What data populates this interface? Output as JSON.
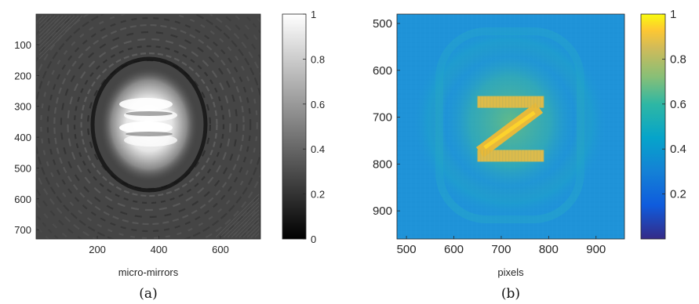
{
  "chart_data": [
    {
      "type": "heatmap",
      "panel_label": "(a)",
      "title": "",
      "xlabel": "micro-mirrors",
      "ylabel": "",
      "xlim": [
        1,
        730
      ],
      "ylim": [
        1,
        730
      ],
      "y_reversed": true,
      "x_ticks": [
        200,
        400,
        600
      ],
      "y_ticks": [
        100,
        200,
        300,
        400,
        500,
        600,
        700
      ],
      "colormap": "gray",
      "colorbar": {
        "limits": [
          0,
          1
        ],
        "ticks": [
          0,
          0.2,
          0.4,
          0.6,
          0.8,
          1
        ],
        "tick_labels": [
          "0",
          "0.2",
          "0.4",
          "0.6",
          "0.8",
          "1"
        ]
      },
      "description_values": {
        "background_level": 0.27,
        "center": [
          370,
          360
        ],
        "peak_level": 1.0
      }
    },
    {
      "type": "heatmap",
      "panel_label": "(b)",
      "title": "",
      "xlabel": "pixels",
      "ylabel": "",
      "xlim": [
        480,
        960
      ],
      "ylim": [
        480,
        960
      ],
      "y_reversed": true,
      "x_ticks": [
        500,
        600,
        700,
        800,
        900
      ],
      "y_ticks": [
        500,
        600,
        700,
        800,
        900
      ],
      "colormap": "parula",
      "colorbar": {
        "limits": [
          0,
          1
        ],
        "ticks": [
          0.2,
          0.4,
          0.6,
          0.8,
          1
        ],
        "tick_labels": [
          "0.2",
          "0.4",
          "0.6",
          "0.8",
          "1"
        ]
      },
      "letter_shape": {
        "top_bar": {
          "x": [
            650,
            790
          ],
          "y": [
            655,
            680
          ]
        },
        "bottom_bar": {
          "x": [
            650,
            790
          ],
          "y": [
            770,
            795
          ]
        },
        "diagonal_from": [
          780,
          680
        ],
        "diagonal_to": [
          655,
          775
        ],
        "level": 0.75
      },
      "description_values": {
        "background_level": 0.35
      }
    }
  ],
  "colors": {
    "parula_low": "#352a87",
    "parula_mid": "#20b2aa",
    "parula_high": "#f9fb0e"
  }
}
